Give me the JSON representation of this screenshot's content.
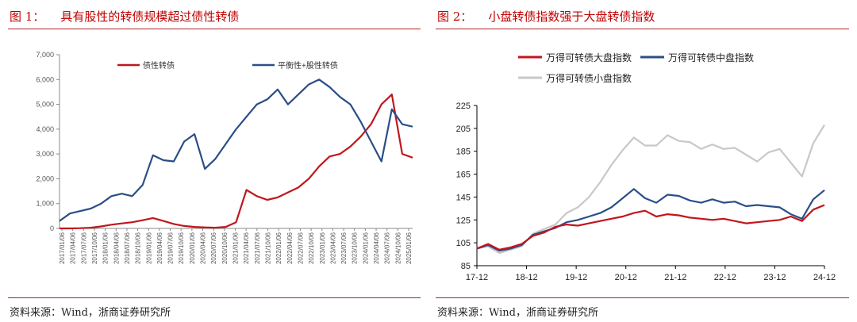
{
  "figures": [
    {
      "number": "图 1：",
      "title": "具有股性的转债规模超过债性转债",
      "source": "资料来源：Wind，浙商证券研究所"
    },
    {
      "number": "图 2：",
      "title": "小盘转债指数强于大盘转债指数",
      "source": "资料来源：Wind，浙商证券研究所"
    }
  ],
  "colors": {
    "red": "#c0161c",
    "blue": "#2b4e86",
    "gray": "#c8c8c8",
    "accent": "#c00000"
  },
  "chart_data": [
    {
      "type": "line",
      "title": "",
      "xlabel": "",
      "ylabel": "",
      "ylim": [
        0,
        7000
      ],
      "y_ticks": [
        "0",
        "1,000",
        "2,000",
        "3,000",
        "4,000",
        "5,000",
        "6,000",
        "7,000"
      ],
      "x_tick_labels": [
        "2017/01/06",
        "2017/04/06",
        "2017/07/06",
        "2017/10/06",
        "2018/01/06",
        "2018/04/06",
        "2018/07/06",
        "2018/10/06",
        "2019/01/06",
        "2019/04/06",
        "2019/07/06",
        "2019/10/06",
        "2020/01/06",
        "2020/04/06",
        "2020/07/06",
        "2020/10/06",
        "2021/01/06",
        "2021/04/06",
        "2021/07/06",
        "2021/10/06",
        "2022/01/06",
        "2022/04/06",
        "2022/07/06",
        "2022/10/06",
        "2023/01/06",
        "2023/04/06",
        "2023/07/06",
        "2023/10/06",
        "2024/01/06",
        "2024/04/06",
        "2024/07/06",
        "2024/10/06",
        "2025/01/06"
      ],
      "legend_position": "top",
      "grid": false,
      "series": [
        {
          "name": "债性转债",
          "color": "#c0161c",
          "values": [
            0,
            0,
            10,
            30,
            80,
            150,
            200,
            250,
            330,
            420,
            300,
            180,
            100,
            60,
            40,
            30,
            60,
            250,
            1550,
            1300,
            1150,
            1250,
            1450,
            1650,
            2000,
            2500,
            2900,
            3000,
            3300,
            3700,
            4200,
            5000,
            5400,
            3000,
            2850
          ]
        },
        {
          "name": "平衡性+股性转债",
          "color": "#2b4e86",
          "values": [
            300,
            600,
            700,
            800,
            1000,
            1300,
            1400,
            1300,
            1750,
            2950,
            2750,
            2700,
            3500,
            3800,
            2400,
            2800,
            3400,
            4000,
            4500,
            5000,
            5200,
            5600,
            5000,
            5400,
            5800,
            6000,
            5700,
            5300,
            5000,
            4300,
            3500,
            2700,
            4800,
            4200,
            4100
          ]
        }
      ]
    },
    {
      "type": "line",
      "title": "",
      "xlabel": "",
      "ylabel": "",
      "ylim": [
        85,
        225
      ],
      "y_ticks": [
        85,
        105,
        125,
        145,
        165,
        185,
        205,
        225
      ],
      "x_tick_labels": [
        "17-12",
        "18-12",
        "19-12",
        "20-12",
        "21-12",
        "22-12",
        "23-12",
        "24-12"
      ],
      "legend_position": "top-left",
      "grid": false,
      "series": [
        {
          "name": "万得可转债大盘指数",
          "color": "#c0161c",
          "values": [
            100,
            104,
            99,
            101,
            104,
            111,
            114,
            119,
            121,
            120,
            122,
            124,
            126,
            128,
            131,
            133,
            128,
            130,
            129,
            127,
            126,
            125,
            126,
            124,
            122,
            123,
            124,
            125,
            128,
            124,
            134,
            138
          ]
        },
        {
          "name": "万得可转债中盘指数",
          "color": "#2b4e86",
          "values": [
            100,
            103,
            98,
            100,
            103,
            112,
            115,
            118,
            123,
            125,
            128,
            131,
            136,
            144,
            152,
            144,
            140,
            147,
            146,
            142,
            140,
            143,
            140,
            141,
            137,
            138,
            137,
            136,
            130,
            126,
            143,
            151
          ]
        },
        {
          "name": "万得可转债小盘指数",
          "color": "#c8c8c8",
          "values": [
            100,
            102,
            96,
            99,
            102,
            113,
            117,
            121,
            131,
            136,
            145,
            158,
            173,
            186,
            197,
            190,
            190,
            199,
            194,
            193,
            187,
            191,
            187,
            188,
            182,
            176,
            184,
            187,
            175,
            163,
            192,
            208
          ]
        }
      ]
    }
  ]
}
